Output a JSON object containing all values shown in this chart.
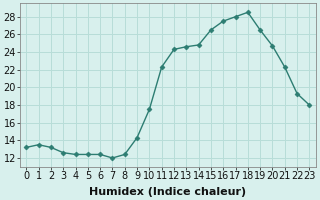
{
  "x": [
    0,
    1,
    2,
    3,
    4,
    5,
    6,
    7,
    8,
    9,
    10,
    11,
    12,
    13,
    14,
    15,
    16,
    17,
    18,
    19,
    20,
    21,
    22,
    23
  ],
  "y": [
    13.2,
    13.5,
    13.2,
    12.6,
    12.4,
    12.4,
    12.4,
    12.0,
    12.4,
    14.3,
    17.5,
    22.3,
    24.3,
    24.6,
    24.8,
    26.5,
    27.5,
    28.0,
    28.5,
    26.5,
    24.7,
    22.3,
    19.3,
    18.0
  ],
  "line_color": "#2d7d72",
  "marker_color": "#2d7d72",
  "bg_color": "#d8f0ed",
  "grid_color": "#b8ddd8",
  "xlabel": "Humidex (Indice chaleur)",
  "ylabel_ticks": [
    12,
    14,
    16,
    18,
    20,
    22,
    24,
    26,
    28
  ],
  "ylim": [
    11.0,
    29.5
  ],
  "xlim": [
    -0.5,
    23.5
  ],
  "xlabel_fontsize": 8,
  "tick_fontsize": 7,
  "marker_size": 2.5
}
